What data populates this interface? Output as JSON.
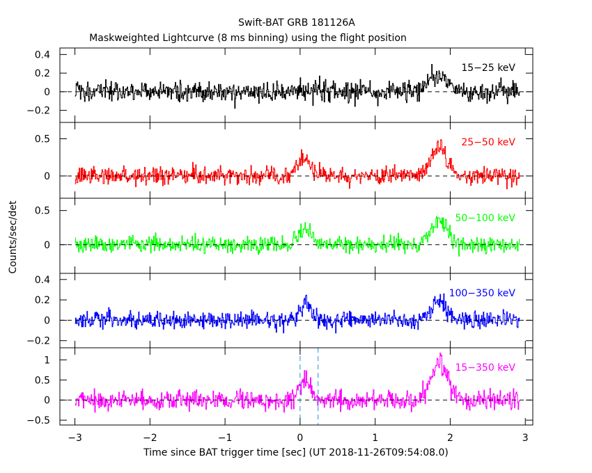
{
  "title": "Swift-BAT GRB 181126A",
  "subtitle": "Maskweighted Lightcurve (8 ms binning) using the flight position",
  "xlabel": "Time since BAT trigger time [sec] (UT 2018-11-26T09:54:08.0)",
  "ylabel": "Counts/sec/det",
  "chart_data": {
    "type": "line",
    "x_range": [
      -3.2,
      3.1
    ],
    "x_ticks": [
      -3,
      -2,
      -1,
      0,
      1,
      2,
      3
    ],
    "x_tick_labels": [
      "-3",
      "-2",
      "-1",
      "0",
      "1",
      "2",
      "3"
    ],
    "data_x_range": [
      -3.0,
      2.93
    ],
    "bin_width_sec": 0.008,
    "dashed_vertical_lines": [
      0.0,
      0.24
    ],
    "grid": false,
    "legend": "per-panel labels, top-right",
    "panels": [
      {
        "name": "15-25 keV",
        "color": "#000000",
        "ylim": [
          -0.33,
          0.47
        ],
        "y_ticks": [
          -0.2,
          0,
          0.2,
          0.4
        ],
        "y_tick_labels": [
          "-0.2",
          "0",
          "0.2",
          "0.4"
        ],
        "noise_sigma": 0.09,
        "pulses": [
          {
            "t": 1.85,
            "amp": 0.2,
            "width": 0.12
          }
        ]
      },
      {
        "name": "25-50 keV",
        "color": "#ff0000",
        "ylim": [
          -0.3,
          0.72
        ],
        "y_ticks": [
          0,
          0.5
        ],
        "y_tick_labels": [
          "0",
          "0.5"
        ],
        "noise_sigma": 0.1,
        "pulses": [
          {
            "t": 0.05,
            "amp": 0.22,
            "width": 0.09
          },
          {
            "t": 1.85,
            "amp": 0.4,
            "width": 0.11
          }
        ]
      },
      {
        "name": "50-100 keV",
        "color": "#00ff00",
        "ylim": [
          -0.42,
          0.68
        ],
        "y_ticks": [
          0,
          0.5
        ],
        "y_tick_labels": [
          "0",
          "0.5"
        ],
        "noise_sigma": 0.1,
        "pulses": [
          {
            "t": 0.08,
            "amp": 0.2,
            "width": 0.09
          },
          {
            "t": 1.85,
            "amp": 0.4,
            "width": 0.1
          }
        ]
      },
      {
        "name": "100-350 keV",
        "color": "#0000ff",
        "ylim": [
          -0.27,
          0.46
        ],
        "y_ticks": [
          -0.2,
          0,
          0.2,
          0.4
        ],
        "y_tick_labels": [
          "-0.2",
          "0",
          "0.2",
          "0.4"
        ],
        "noise_sigma": 0.07,
        "pulses": [
          {
            "t": 0.07,
            "amp": 0.16,
            "width": 0.07
          },
          {
            "t": 1.85,
            "amp": 0.18,
            "width": 0.1
          }
        ]
      },
      {
        "name": "15-350 keV",
        "color": "#ff00ff",
        "ylim": [
          -0.62,
          1.3
        ],
        "y_ticks": [
          -0.5,
          0,
          0.5,
          1
        ],
        "y_tick_labels": [
          "-0.5",
          "0",
          "0.5",
          "1"
        ],
        "noise_sigma": 0.2,
        "pulses": [
          {
            "t": 0.07,
            "amp": 0.5,
            "width": 0.09
          },
          {
            "t": 1.85,
            "amp": 0.95,
            "width": 0.11
          }
        ]
      }
    ]
  }
}
